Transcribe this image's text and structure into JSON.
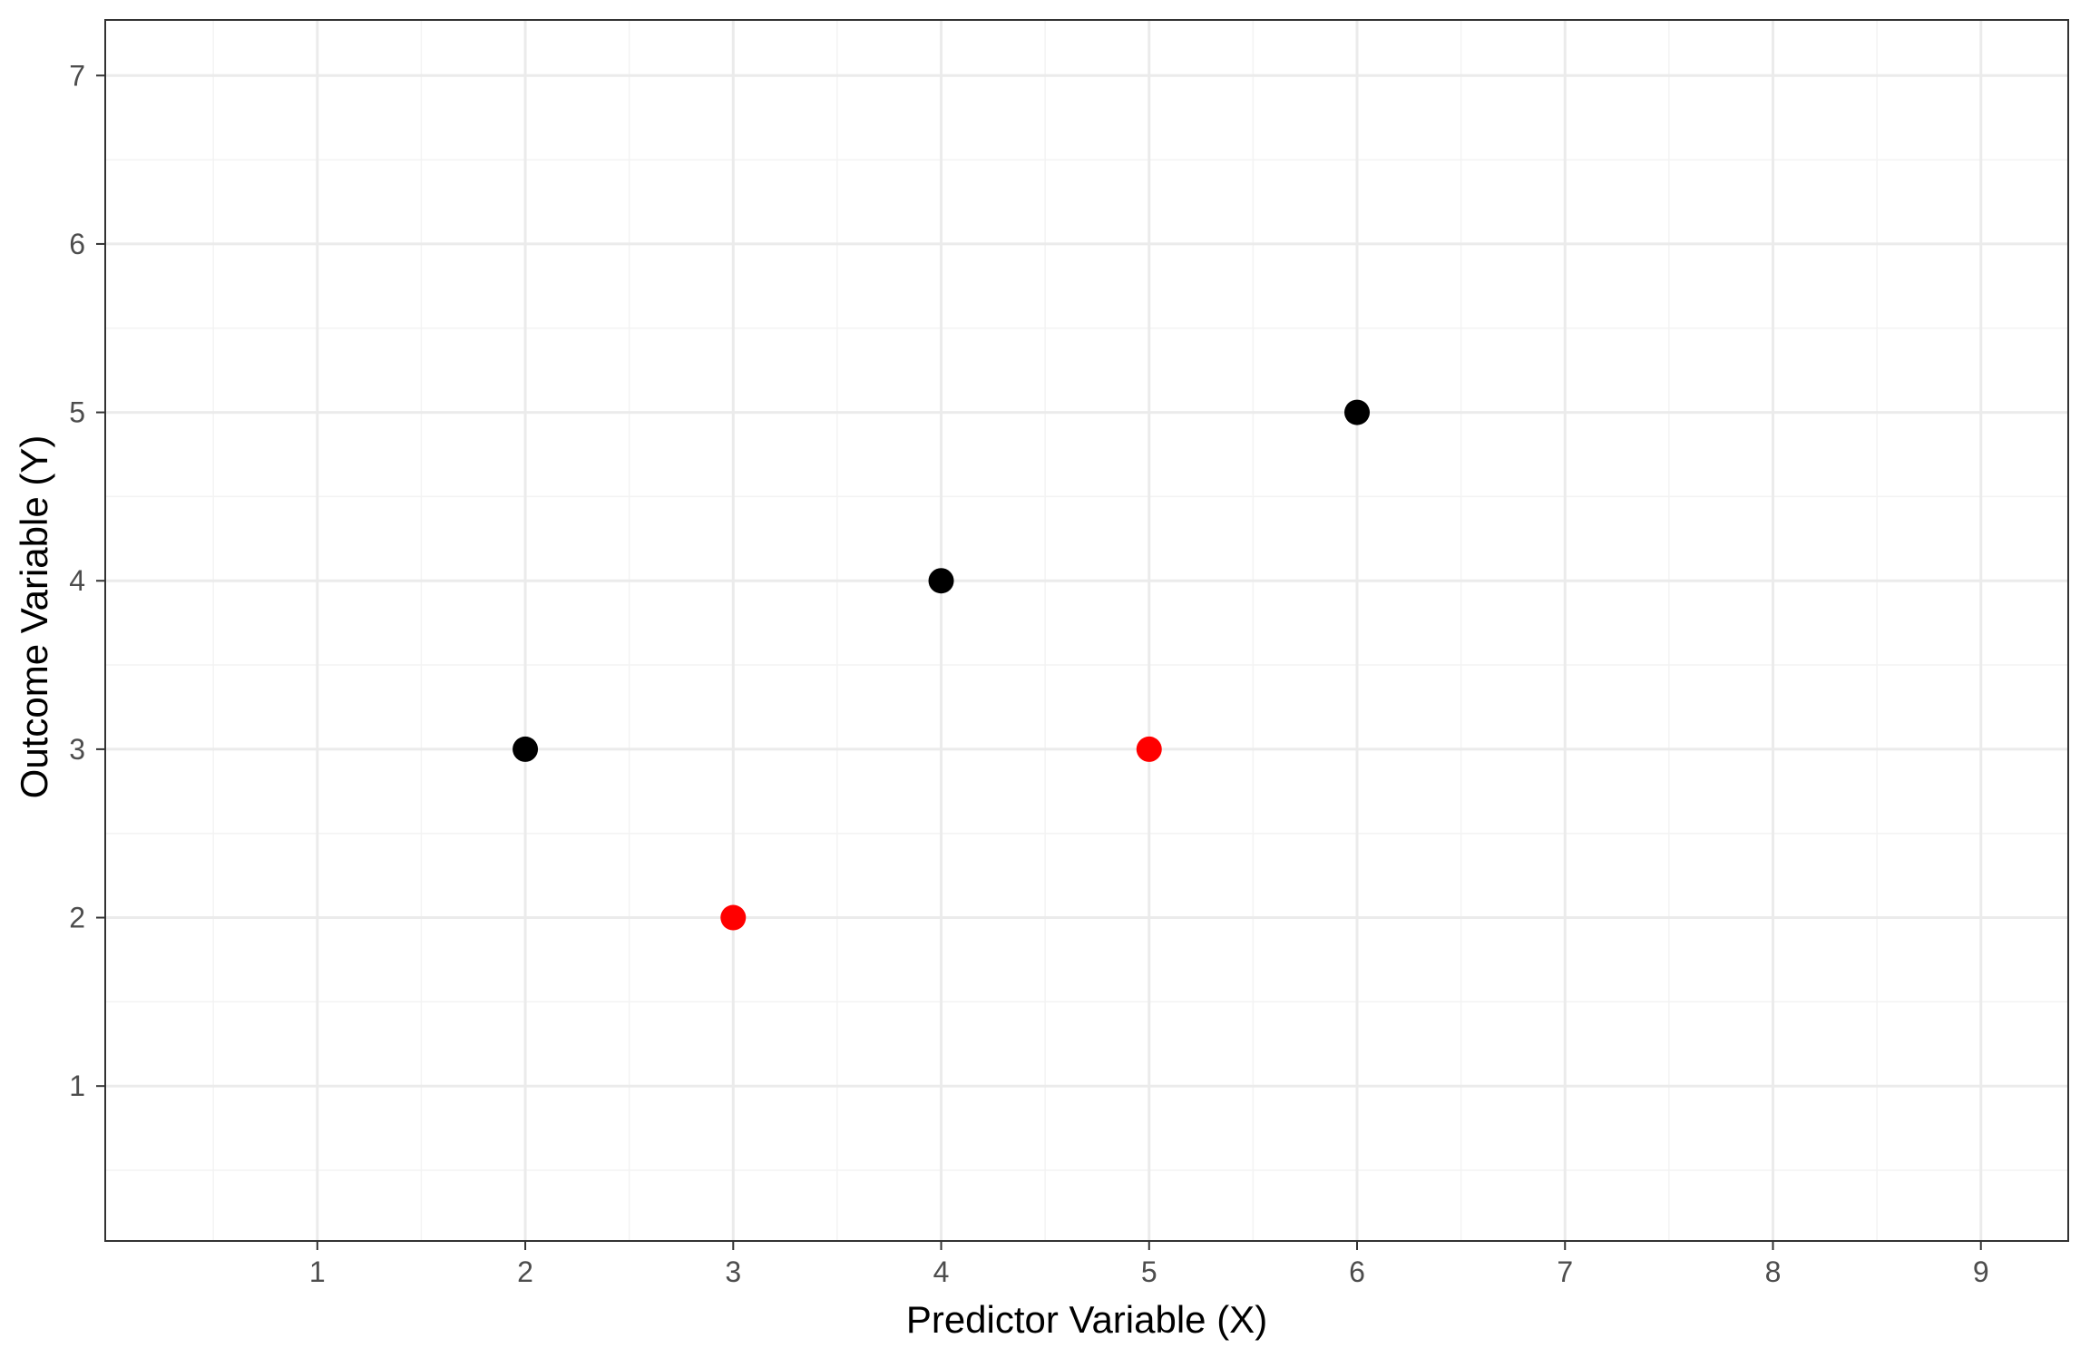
{
  "chart_data": {
    "type": "scatter",
    "title": "",
    "xlabel": "Predictor Variable (X)",
    "ylabel": "Outcome Variable (Y)",
    "xlim": [
      -0.02,
      9.42
    ],
    "ylim": [
      0.08,
      7.33
    ],
    "xticks": [
      1,
      2,
      3,
      4,
      5,
      6,
      7,
      8,
      9
    ],
    "yticks": [
      1,
      2,
      3,
      4,
      5,
      6,
      7
    ],
    "x_tick_labels": [
      "1",
      "2",
      "3",
      "4",
      "5",
      "6",
      "7",
      "8",
      "9"
    ],
    "y_tick_labels": [
      "1",
      "2",
      "3",
      "4",
      "5",
      "6",
      "7"
    ],
    "grid": true,
    "legend": "none",
    "points": [
      {
        "x": 2,
        "y": 3,
        "color": "#000000"
      },
      {
        "x": 3,
        "y": 2,
        "color": "#ff0000"
      },
      {
        "x": 4,
        "y": 4,
        "color": "#000000"
      },
      {
        "x": 5,
        "y": 3,
        "color": "#ff0000"
      },
      {
        "x": 6,
        "y": 5,
        "color": "#000000"
      }
    ],
    "colors": {
      "background": "#ffffff",
      "grid_major": "#ebebeb",
      "grid_minor": "#f3f3f3",
      "panel_border": "#333333",
      "tick_label": "#4d4d4d"
    }
  }
}
